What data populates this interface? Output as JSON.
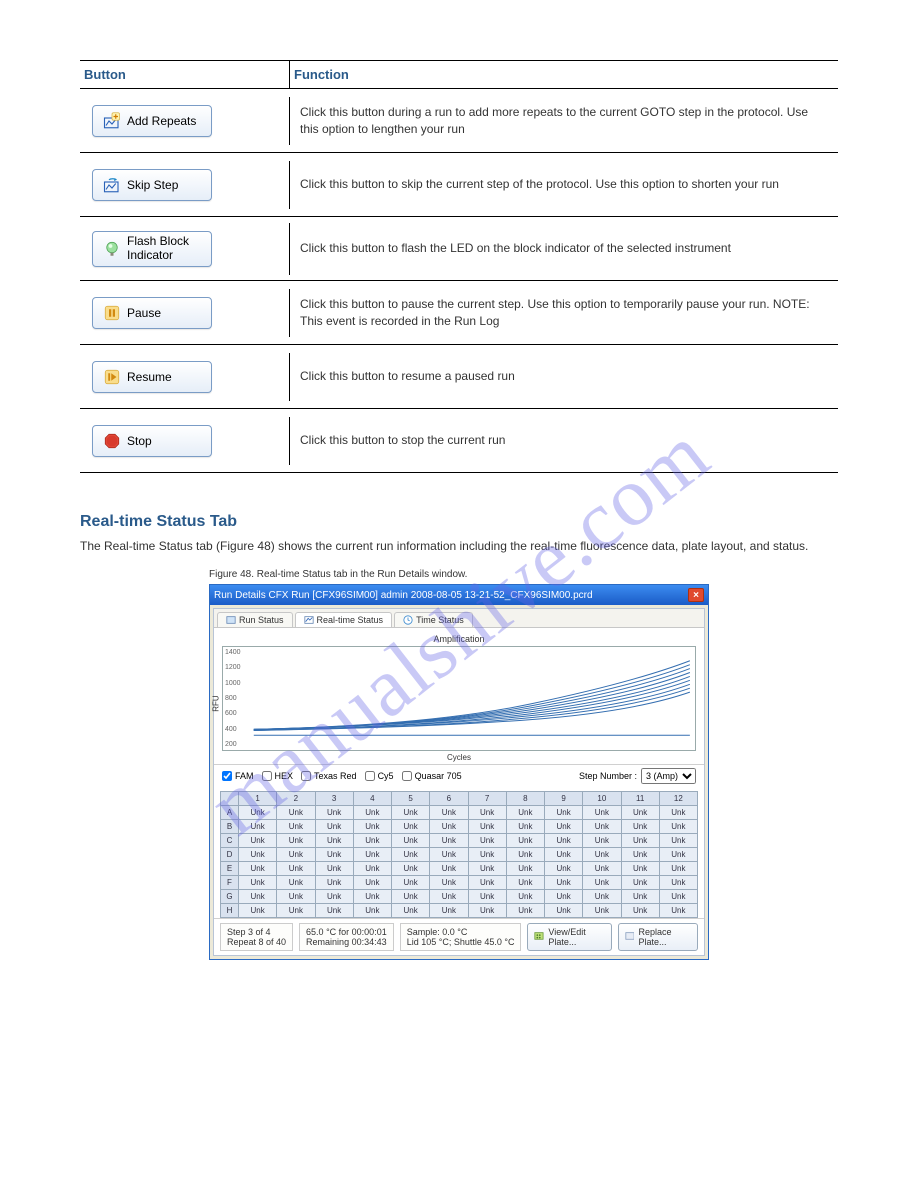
{
  "watermark": "manualshive.com",
  "table": {
    "header": {
      "col1": "Button",
      "col2": "Function"
    },
    "rows": [
      {
        "label": "Add Repeats",
        "icon_colors": {
          "box": "#2a62b8",
          "plus_bg": "#fff3b0",
          "plus_fg": "#d07a00"
        },
        "desc": "Click this button during a run to add more repeats to the current GOTO step in the protocol. Use this option to lengthen your run"
      },
      {
        "label": "Skip Step",
        "icon_colors": {
          "box": "#2a62b8",
          "arrow": "#1e88c8"
        },
        "desc": "Click this button to skip the current step of the protocol. Use this option to shorten your run"
      },
      {
        "label_line1": "Flash Block",
        "label_line2": "Indicator",
        "icon_colors": {
          "ring": "#69c26f",
          "bulb": "#9be09f"
        },
        "desc": "Click this button to flash the LED on the block indicator of the selected instrument"
      },
      {
        "label": "Pause",
        "icon_colors": {
          "bg": "#f7c85a",
          "bars": "#d28a10"
        },
        "desc": "Click this button to pause the current step. Use this option to temporarily pause your run. NOTE: This event is recorded in the Run Log"
      },
      {
        "label": "Resume",
        "icon_colors": {
          "bg": "#f2c24a",
          "tri": "#d28a10"
        },
        "desc": "Click this button to resume a paused run"
      },
      {
        "label": "Stop",
        "icon_colors": {
          "bg": "#d83a2c",
          "ring": "#a82418"
        },
        "desc": "Click this button to stop the current run"
      }
    ]
  },
  "section": {
    "title": "Real-time Status Tab",
    "body": "The Real-time Status tab (Figure 48) shows the current run information including the real-time fluorescence data, plate layout, and status.",
    "caption": "Figure 48. Real-time Status tab in the Run Details window."
  },
  "window": {
    "title": "Run Details   CFX Run [CFX96SIM00]   admin  2008-08-05 13-21-52_CFX96SIM00.pcrd",
    "tabs": [
      "Run Status",
      "Real-time Status",
      "Time Status"
    ],
    "active_tab": 1,
    "chart": {
      "title": "Amplification",
      "ylabel": "RFU",
      "xlabel": "Cycles",
      "yticks": [
        "1400",
        "1200",
        "1000",
        "800",
        "600",
        "400",
        "200"
      ],
      "line_color": "#1f5fa8",
      "grid_color": "#d8d8d8",
      "bg": "#ffffff"
    },
    "fluorophores": [
      {
        "name": "FAM",
        "checked": true
      },
      {
        "name": "HEX",
        "checked": false
      },
      {
        "name": "Texas Red",
        "checked": false
      },
      {
        "name": "Cy5",
        "checked": false
      },
      {
        "name": "Quasar 705",
        "checked": false
      }
    ],
    "step_number_label": "Step Number :",
    "step_number_value": "3 (Amp)",
    "plate": {
      "cols": [
        "1",
        "2",
        "3",
        "4",
        "5",
        "6",
        "7",
        "8",
        "9",
        "10",
        "11",
        "12"
      ],
      "rows": [
        "A",
        "B",
        "C",
        "D",
        "E",
        "F",
        "G",
        "H"
      ],
      "cell": "Unk"
    },
    "status": {
      "step": "Step 3 of 4",
      "temp": "65.0 °C for 00:00:01",
      "sample": "Sample: 0.0 °C",
      "repeat": "Repeat 8 of 40",
      "remaining": "Remaining 00:34:43",
      "lid": "Lid 105 °C; Shuttle 45.0 °C",
      "btn_viewedit": "View/Edit Plate...",
      "btn_replace": "Replace Plate..."
    }
  }
}
